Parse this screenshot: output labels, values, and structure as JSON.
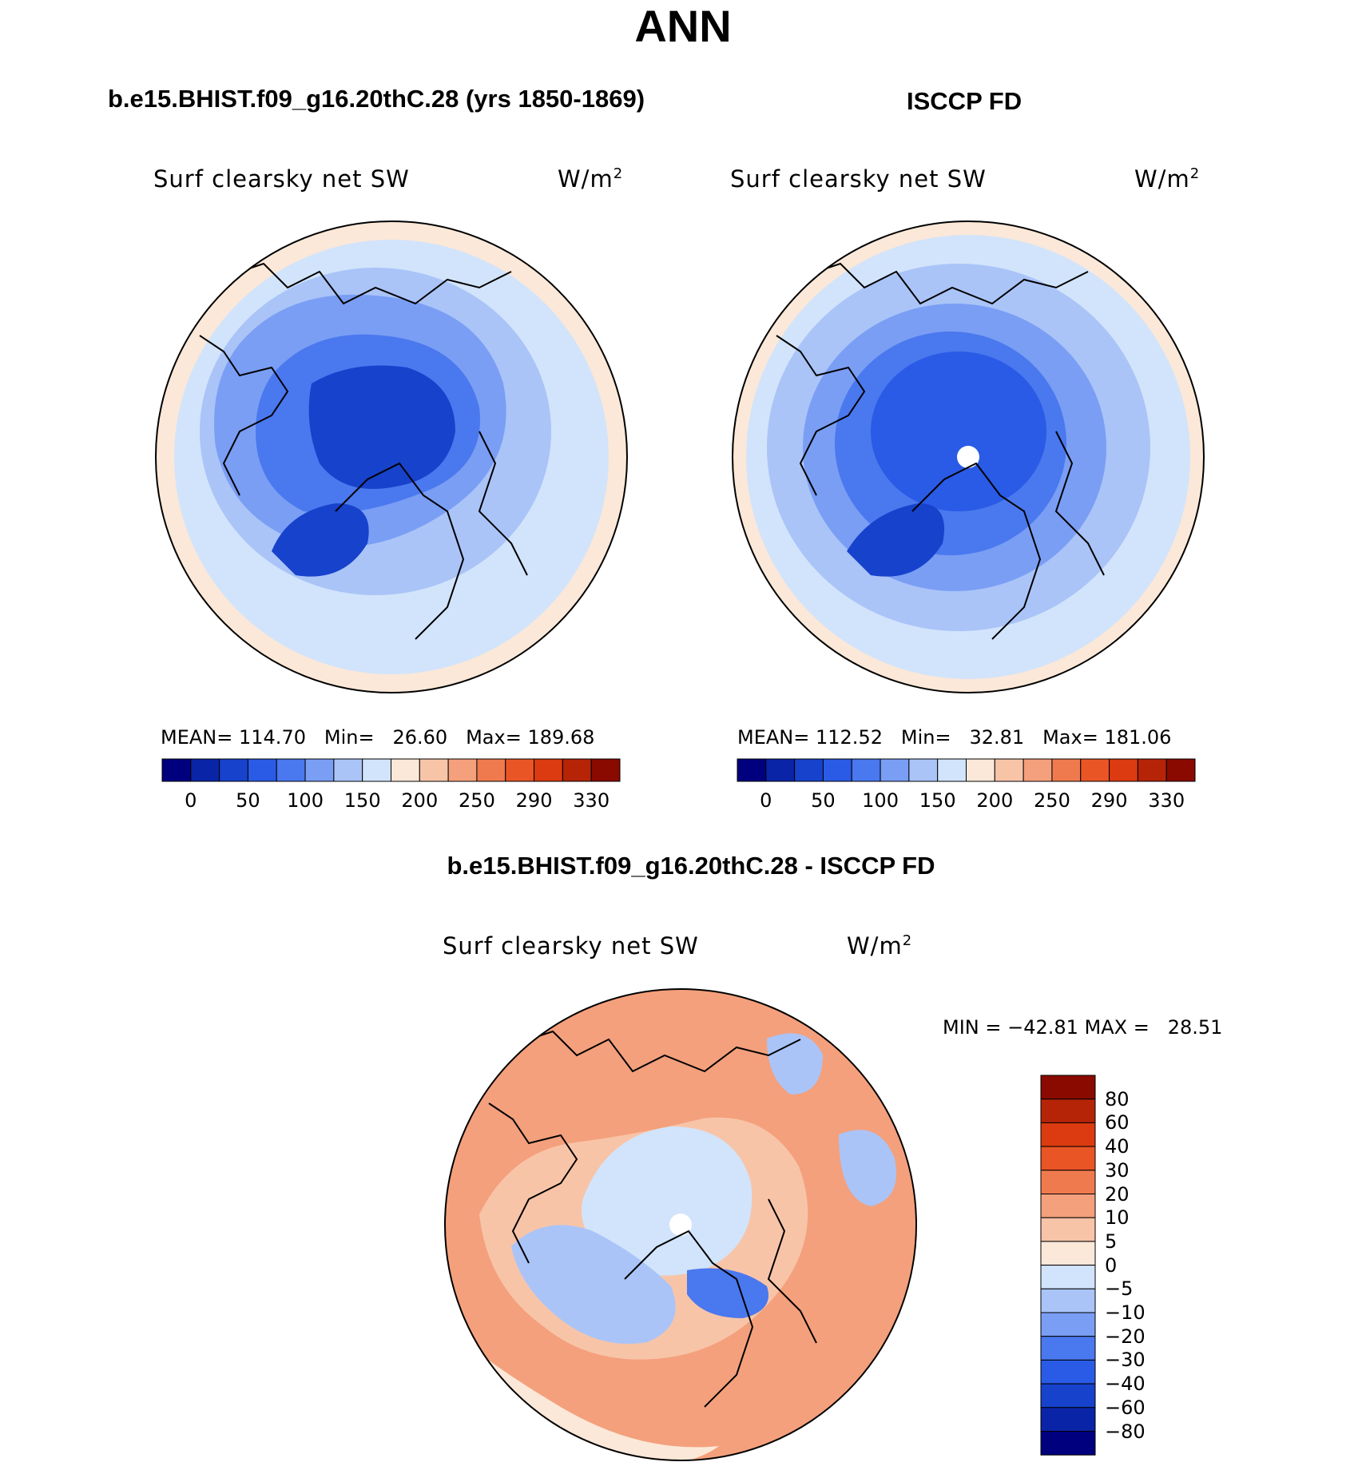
{
  "title": "ANN",
  "panels": {
    "left": {
      "title": "b.e15.BHIST.f09_g16.20thC.28 (yrs 1850-1869)",
      "variable": "Surf clearsky net SW",
      "units": "W/m",
      "units_sup": "2",
      "stats": {
        "mean_label": "MEAN=",
        "mean": "114.70",
        "min_label": "Min=",
        "min": "26.60",
        "max_label": "Max=",
        "max": "189.68"
      }
    },
    "right": {
      "title": "ISCCP FD",
      "variable": "Surf clearsky net SW",
      "units": "W/m",
      "units_sup": "2",
      "stats": {
        "mean_label": "MEAN=",
        "mean": "112.52",
        "min_label": "Min=",
        "min": "32.81",
        "max_label": "Max=",
        "max": "181.06"
      }
    },
    "diff": {
      "title": "b.e15.BHIST.f09_g16.20thC.28 - ISCCP FD",
      "variable": "Surf clearsky net SW",
      "units": "W/m",
      "units_sup": "2",
      "minmax_text": "MIN = −42.81 MAX =   28.51"
    }
  },
  "horizontal_colorbar": {
    "tick_labels": [
      "0",
      "50",
      "100",
      "150",
      "200",
      "250",
      "290",
      "330"
    ],
    "colors": [
      "#00007f",
      "#0a24a8",
      "#1742cc",
      "#2a5be6",
      "#4a78ee",
      "#7a9ef4",
      "#aac4f8",
      "#d2e4fb",
      "#fbe8d8",
      "#f8c4a8",
      "#f4a07c",
      "#ef7a4e",
      "#ea5526",
      "#dc3a10",
      "#b62408",
      "#8a0a00"
    ]
  },
  "vertical_colorbar": {
    "tick_labels": [
      "80",
      "60",
      "40",
      "30",
      "20",
      "10",
      "5",
      "0",
      "−5",
      "−10",
      "−20",
      "−30",
      "−40",
      "−60",
      "−80"
    ],
    "colors": [
      "#8a0a00",
      "#b62408",
      "#dc3a10",
      "#ea5526",
      "#ef7a4e",
      "#f4a07c",
      "#f8c4a8",
      "#fbe8d8",
      "#d2e4fb",
      "#aac4f8",
      "#7a9ef4",
      "#4a78ee",
      "#2a5be6",
      "#1742cc",
      "#0a24a8",
      "#00007f"
    ]
  },
  "map_colors": {
    "outer": "#fbe8d8",
    "light": "#d2e4fb",
    "mid": "#aac4f8",
    "midblue": "#7a9ef4",
    "blue": "#4a78ee",
    "deep": "#2a5be6",
    "deeper": "#1742cc",
    "diff_pos": "#f4a07c",
    "diff_pos_light": "#f8c4a8",
    "diff_neutral": "#fbe8d8",
    "diff_neg": "#aac4f8",
    "diff_neg_light": "#d2e4fb",
    "diff_neg_strong": "#4a78ee"
  }
}
